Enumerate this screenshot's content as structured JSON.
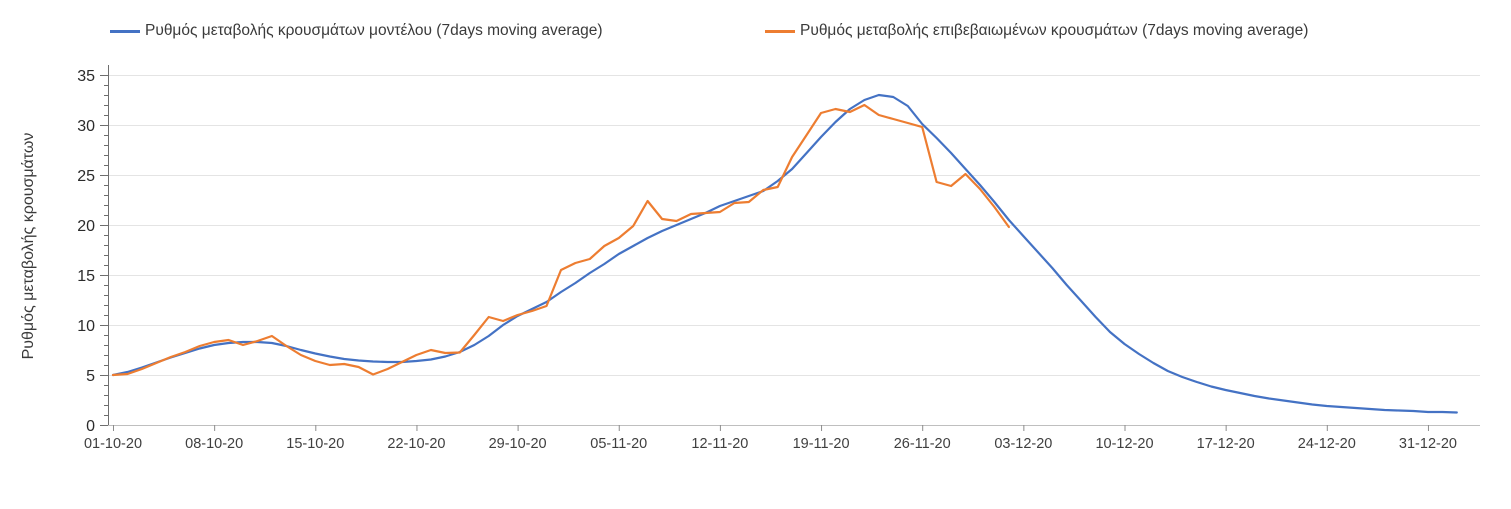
{
  "legend": {
    "model": {
      "label": "Ρυθμός μεταβολής κρουσμάτων μοντέλου (7days moving average)",
      "color": "#4472C4"
    },
    "confirmed": {
      "label": "Ρυθμός μεταβολής επιβεβαιωμένων κρουσμάτων (7days moving average)",
      "color": "#ED7D31"
    }
  },
  "y_axis": {
    "label": "Ρυθμός μεταβολής κρουσμάτων"
  },
  "chart_data": {
    "type": "line",
    "title": "",
    "xlabel": "",
    "ylabel": "Ρυθμός μεταβολής κρουσμάτων",
    "ylim": [
      0,
      35
    ],
    "y_tick_step": 5,
    "y_minor_tick_step": 1,
    "grid": "horizontal",
    "legend_position": "top",
    "x_unit": "days since 01-10-20",
    "x_tick_interval_days": 7,
    "x_tick_labels": [
      "01-10-20",
      "08-10-20",
      "15-10-20",
      "22-10-20",
      "29-10-20",
      "05-11-20",
      "12-11-20",
      "19-11-20",
      "26-11-20",
      "03-12-20",
      "10-12-20",
      "17-12-20",
      "24-12-20",
      "31-12-20"
    ],
    "series": [
      {
        "name": "Ρυθμός μεταβολής κρουσμάτων μοντέλου (7days moving average)",
        "color": "#4472C4",
        "start_day": 0,
        "values": [
          5.0,
          5.3,
          5.75,
          6.25,
          6.75,
          7.2,
          7.65,
          8.0,
          8.2,
          8.3,
          8.3,
          8.2,
          7.9,
          7.5,
          7.15,
          6.85,
          6.6,
          6.45,
          6.35,
          6.3,
          6.3,
          6.4,
          6.55,
          6.85,
          7.3,
          8.0,
          8.9,
          10.0,
          10.9,
          11.6,
          12.3,
          13.3,
          14.2,
          15.2,
          16.1,
          17.1,
          17.9,
          18.7,
          19.4,
          20.0,
          20.6,
          21.2,
          21.9,
          22.4,
          22.9,
          23.4,
          24.4,
          25.6,
          27.2,
          28.8,
          30.3,
          31.6,
          32.5,
          33.0,
          32.8,
          31.9,
          30.1,
          28.7,
          27.2,
          25.6,
          24.0,
          22.3,
          20.5,
          18.9,
          17.3,
          15.7,
          14.0,
          12.4,
          10.8,
          9.3,
          8.1,
          7.1,
          6.2,
          5.4,
          4.8,
          4.3,
          3.85,
          3.5,
          3.2,
          2.9,
          2.65,
          2.45,
          2.25,
          2.05,
          1.9,
          1.8,
          1.7,
          1.6,
          1.5,
          1.45,
          1.4,
          1.3,
          1.3,
          1.25
        ]
      },
      {
        "name": "Ρυθμός μεταβολής επιβεβαιωμένων κρουσμάτων (7days moving average)",
        "color": "#ED7D31",
        "start_day": 0,
        "values": [
          5.0,
          5.1,
          5.6,
          6.2,
          6.8,
          7.3,
          7.9,
          8.3,
          8.5,
          8.0,
          8.4,
          8.9,
          7.9,
          7.0,
          6.4,
          6.0,
          6.1,
          5.8,
          5.05,
          5.6,
          6.3,
          7.0,
          7.5,
          7.2,
          7.25,
          9.0,
          10.8,
          10.4,
          11.0,
          11.4,
          11.9,
          15.5,
          16.2,
          16.6,
          17.9,
          18.7,
          19.9,
          22.4,
          20.6,
          20.4,
          21.1,
          21.2,
          21.3,
          22.2,
          22.3,
          23.5,
          23.8,
          26.8,
          29.0,
          31.2,
          31.6,
          31.3,
          32.0,
          31.0,
          30.6,
          30.2,
          29.8,
          24.3,
          23.9,
          25.1,
          23.6,
          21.8,
          19.8
        ]
      }
    ]
  }
}
